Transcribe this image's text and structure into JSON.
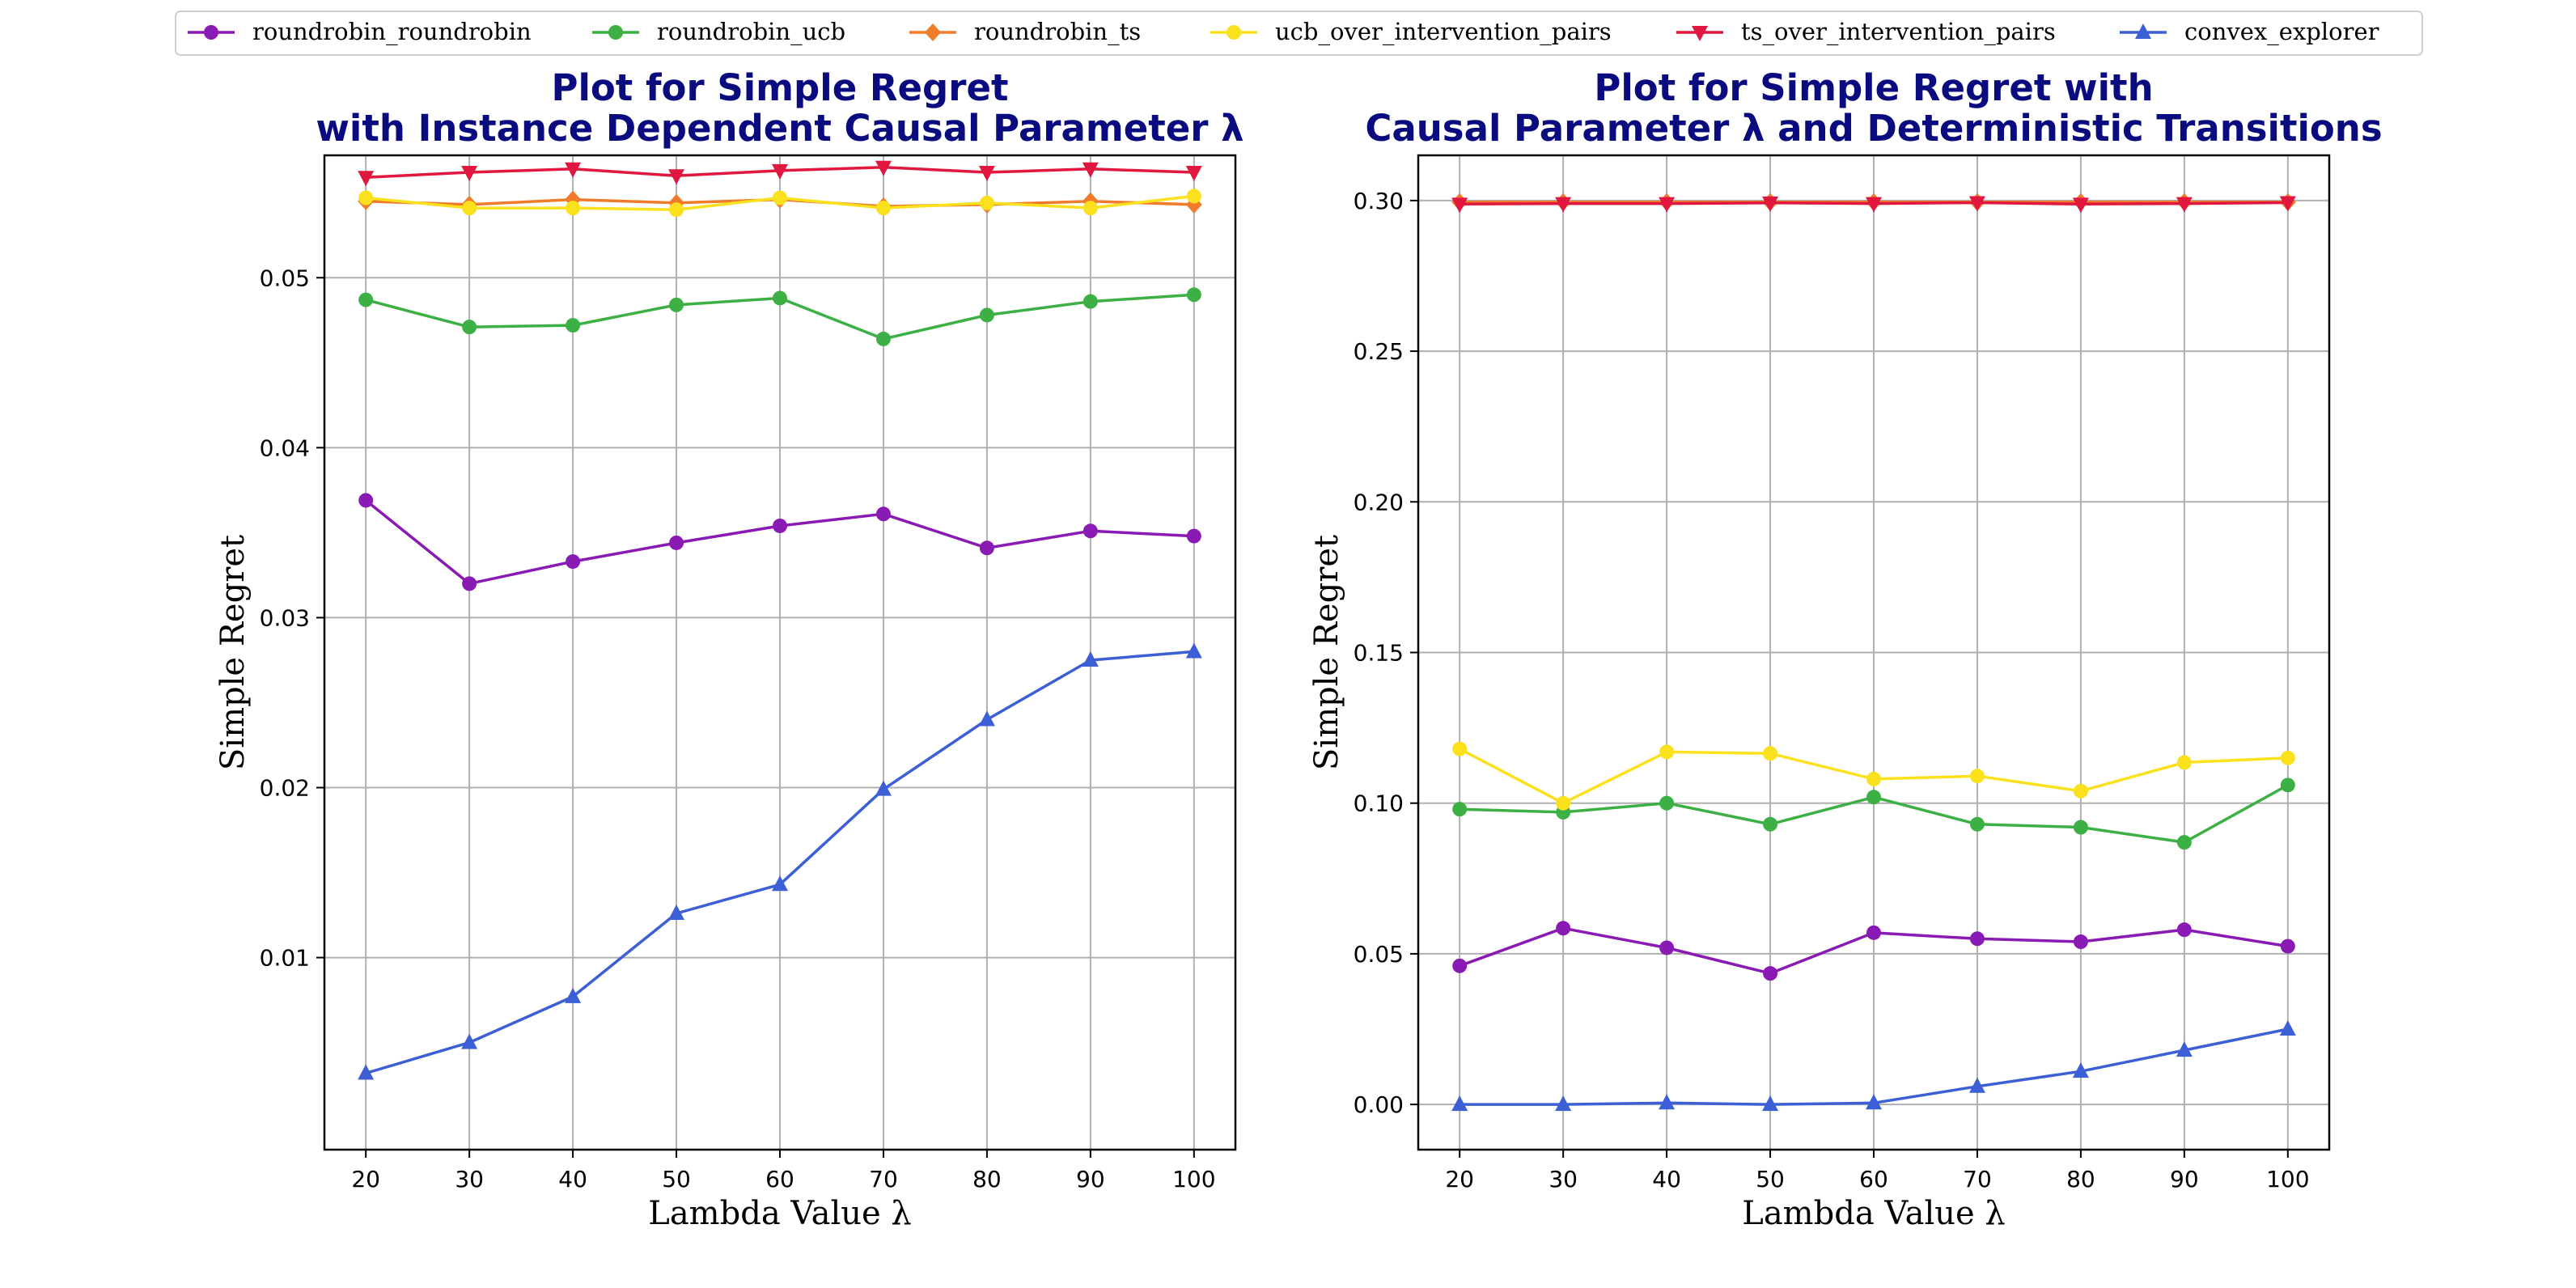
{
  "legend": {
    "placement": "top-center",
    "entries": [
      {
        "label": "roundrobin_roundrobin",
        "color": "#8a1ab4",
        "marker": "circle"
      },
      {
        "label": "roundrobin_ucb",
        "color": "#3cb044",
        "marker": "circle"
      },
      {
        "label": "roundrobin_ts",
        "color": "#f07b2a",
        "marker": "diamond"
      },
      {
        "label": "ucb_over_intervention_pairs",
        "color": "#fbe01e",
        "marker": "circle"
      },
      {
        "label": "ts_over_intervention_pairs",
        "color": "#e0173e",
        "marker": "triangle-down"
      },
      {
        "label": "convex_explorer",
        "color": "#3c5fd6",
        "marker": "triangle-up"
      }
    ]
  },
  "chart_data": [
    {
      "type": "line",
      "title": "Plot for Simple Regret\nwith Instance Dependent Causal Parameter λ",
      "xlabel": "Lambda Value λ",
      "ylabel": "Simple Regret",
      "grid": true,
      "x": [
        20,
        30,
        40,
        50,
        60,
        70,
        80,
        90,
        100
      ],
      "xlim": [
        16,
        104
      ],
      "ylim": [
        -0.0013,
        0.0572
      ],
      "yticks": [
        0.01,
        0.02,
        0.03,
        0.04,
        0.05
      ],
      "ytick_labels": [
        "0.01",
        "0.02",
        "0.03",
        "0.04",
        "0.05"
      ],
      "series": [
        {
          "name": "roundrobin_roundrobin",
          "values": [
            0.0369,
            0.032,
            0.0333,
            0.0344,
            0.0354,
            0.0361,
            0.0341,
            0.0351,
            0.0348
          ]
        },
        {
          "name": "roundrobin_ucb",
          "values": [
            0.0487,
            0.0471,
            0.0472,
            0.0484,
            0.0488,
            0.0464,
            0.0478,
            0.0486,
            0.049
          ]
        },
        {
          "name": "roundrobin_ts",
          "values": [
            0.0545,
            0.0543,
            0.0546,
            0.0544,
            0.0546,
            0.0542,
            0.0543,
            0.0545,
            0.0543
          ]
        },
        {
          "name": "ucb_over_intervention_pairs",
          "values": [
            0.0547,
            0.0541,
            0.0541,
            0.054,
            0.0547,
            0.0541,
            0.0544,
            0.0541,
            0.0548
          ]
        },
        {
          "name": "ts_over_intervention_pairs",
          "values": [
            0.0559,
            0.0562,
            0.0564,
            0.056,
            0.0563,
            0.0565,
            0.0562,
            0.0564,
            0.0562
          ]
        },
        {
          "name": "convex_explorer",
          "values": [
            0.0032,
            0.005,
            0.0077,
            0.0126,
            0.0143,
            0.0199,
            0.024,
            0.0275,
            0.028
          ]
        }
      ]
    },
    {
      "type": "line",
      "title": "Plot for Simple Regret with\nCausal Parameter λ and Deterministic Transitions",
      "xlabel": "Lambda Value λ",
      "ylabel": "Simple Regret",
      "grid": true,
      "x": [
        20,
        30,
        40,
        50,
        60,
        70,
        80,
        90,
        100
      ],
      "xlim": [
        16,
        104
      ],
      "ylim": [
        -0.015,
        0.315
      ],
      "yticks": [
        0.0,
        0.05,
        0.1,
        0.15,
        0.2,
        0.25,
        0.3
      ],
      "ytick_labels": [
        "0.00",
        "0.05",
        "0.10",
        "0.15",
        "0.20",
        "0.25",
        "0.30"
      ],
      "series": [
        {
          "name": "roundrobin_roundrobin",
          "values": [
            0.046,
            0.0585,
            0.052,
            0.0435,
            0.057,
            0.055,
            0.054,
            0.058,
            0.0525
          ]
        },
        {
          "name": "roundrobin_ucb",
          "values": [
            0.098,
            0.097,
            0.1,
            0.093,
            0.102,
            0.093,
            0.092,
            0.087,
            0.106
          ]
        },
        {
          "name": "roundrobin_ts",
          "values": [
            0.2995,
            0.2995,
            0.2995,
            0.2995,
            0.2995,
            0.2995,
            0.2995,
            0.2995,
            0.2995
          ]
        },
        {
          "name": "ucb_over_intervention_pairs",
          "values": [
            0.118,
            0.1,
            0.117,
            0.1165,
            0.108,
            0.109,
            0.104,
            0.1135,
            0.115
          ]
        },
        {
          "name": "ts_over_intervention_pairs",
          "values": [
            0.2988,
            0.299,
            0.299,
            0.2992,
            0.299,
            0.2993,
            0.2988,
            0.299,
            0.2993
          ]
        },
        {
          "name": "convex_explorer",
          "values": [
            0.0,
            0.0,
            0.0005,
            0.0,
            0.0005,
            0.006,
            0.011,
            0.018,
            0.025
          ]
        }
      ]
    }
  ]
}
